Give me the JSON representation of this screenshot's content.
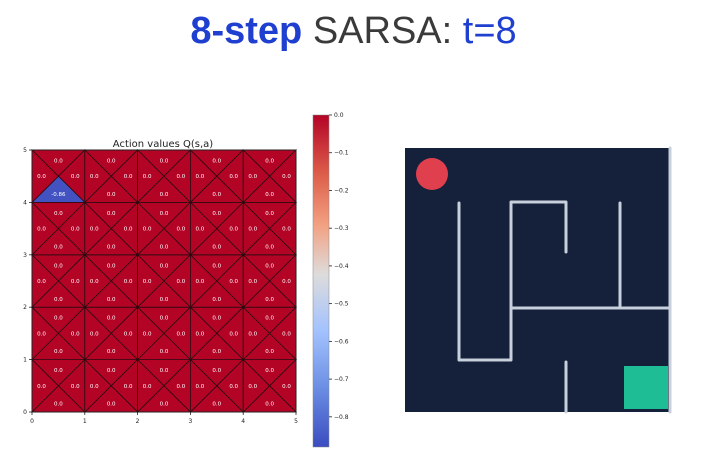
{
  "heading": {
    "part1": "8-step",
    "part2": " SARSA: ",
    "part3": "t=8",
    "color_blue": "#1f3fd1",
    "color_gray": "#3a3a3a"
  },
  "chart_data": {
    "type": "heatmap",
    "title": "Action values Q(s,a)",
    "grid_size": [
      5,
      5
    ],
    "xlim": [
      0,
      5
    ],
    "ylim": [
      0,
      5
    ],
    "x_ticks": [
      "0",
      "1",
      "2",
      "3",
      "4",
      "5"
    ],
    "y_ticks": [
      "0",
      "1",
      "2",
      "3",
      "4",
      "5"
    ],
    "actions": [
      "up",
      "right",
      "down",
      "left"
    ],
    "default_value": 0.0,
    "default_label": "0.0",
    "nonzero": [
      {
        "col": 0,
        "row": 4,
        "action": "down",
        "value": -0.86,
        "label": "-0.86"
      }
    ],
    "colorbar": {
      "vmin": -0.88,
      "vmax": 0.0,
      "ticks": [
        "0.0",
        "−0.1",
        "−0.2",
        "−0.3",
        "−0.4",
        "−0.5",
        "−0.6",
        "−0.7",
        "−0.8"
      ],
      "tick_values": [
        0.0,
        -0.1,
        -0.2,
        -0.3,
        -0.4,
        -0.5,
        -0.6,
        -0.7,
        -0.8
      ],
      "colormap": "coolwarm"
    }
  },
  "maze": {
    "background": "#15213b",
    "wall_color": "#c8d0dc",
    "agent_color": "#e0404e",
    "goal_color": "#1fbd96"
  }
}
